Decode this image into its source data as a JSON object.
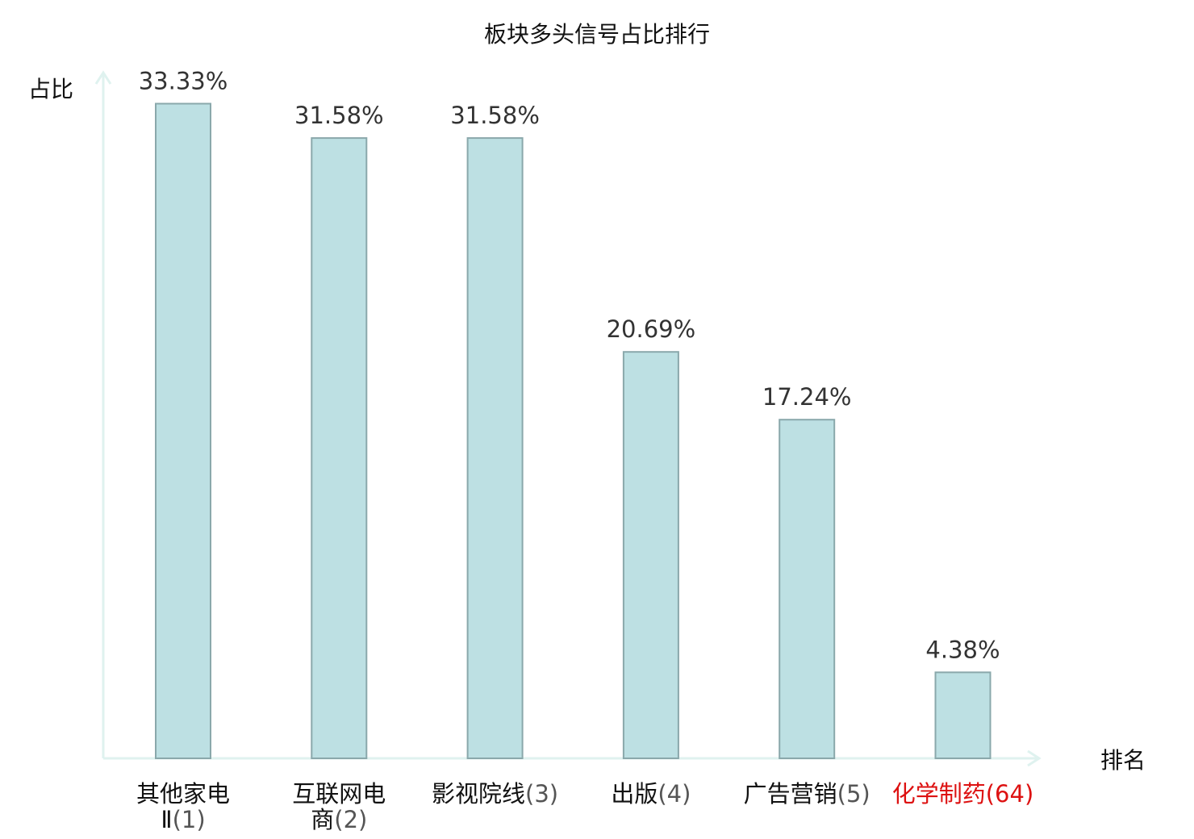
{
  "chart_data": {
    "type": "bar",
    "title": "板块多头信号占比排行",
    "ylabel": "占比",
    "xlabel": "排名",
    "ylim": [
      0,
      34.5
    ],
    "grid": false,
    "legend": "none",
    "categories": [
      {
        "name": "其他家电Ⅱ",
        "rank": "(1)",
        "highlight": false
      },
      {
        "name": "互联网电商",
        "rank": "(2)",
        "highlight": false
      },
      {
        "name": "影视院线",
        "rank": "(3)",
        "highlight": false
      },
      {
        "name": "出版",
        "rank": "(4)",
        "highlight": false
      },
      {
        "name": "广告营销",
        "rank": "(5)",
        "highlight": false
      },
      {
        "name": "化学制药",
        "rank": "(64)",
        "highlight": true
      }
    ],
    "values": [
      33.33,
      31.58,
      31.58,
      20.69,
      17.24,
      4.38
    ],
    "value_labels": [
      "33.33%",
      "31.58%",
      "31.58%",
      "20.69%",
      "17.24%",
      "4.38%"
    ],
    "colors": {
      "bar_fill": "#bde0e3",
      "bar_stroke": "#8aa8ab",
      "axis": "#dff2ef",
      "highlight_text": "#dd1111",
      "rank_text": "#555555",
      "name_text": "#111111"
    }
  }
}
